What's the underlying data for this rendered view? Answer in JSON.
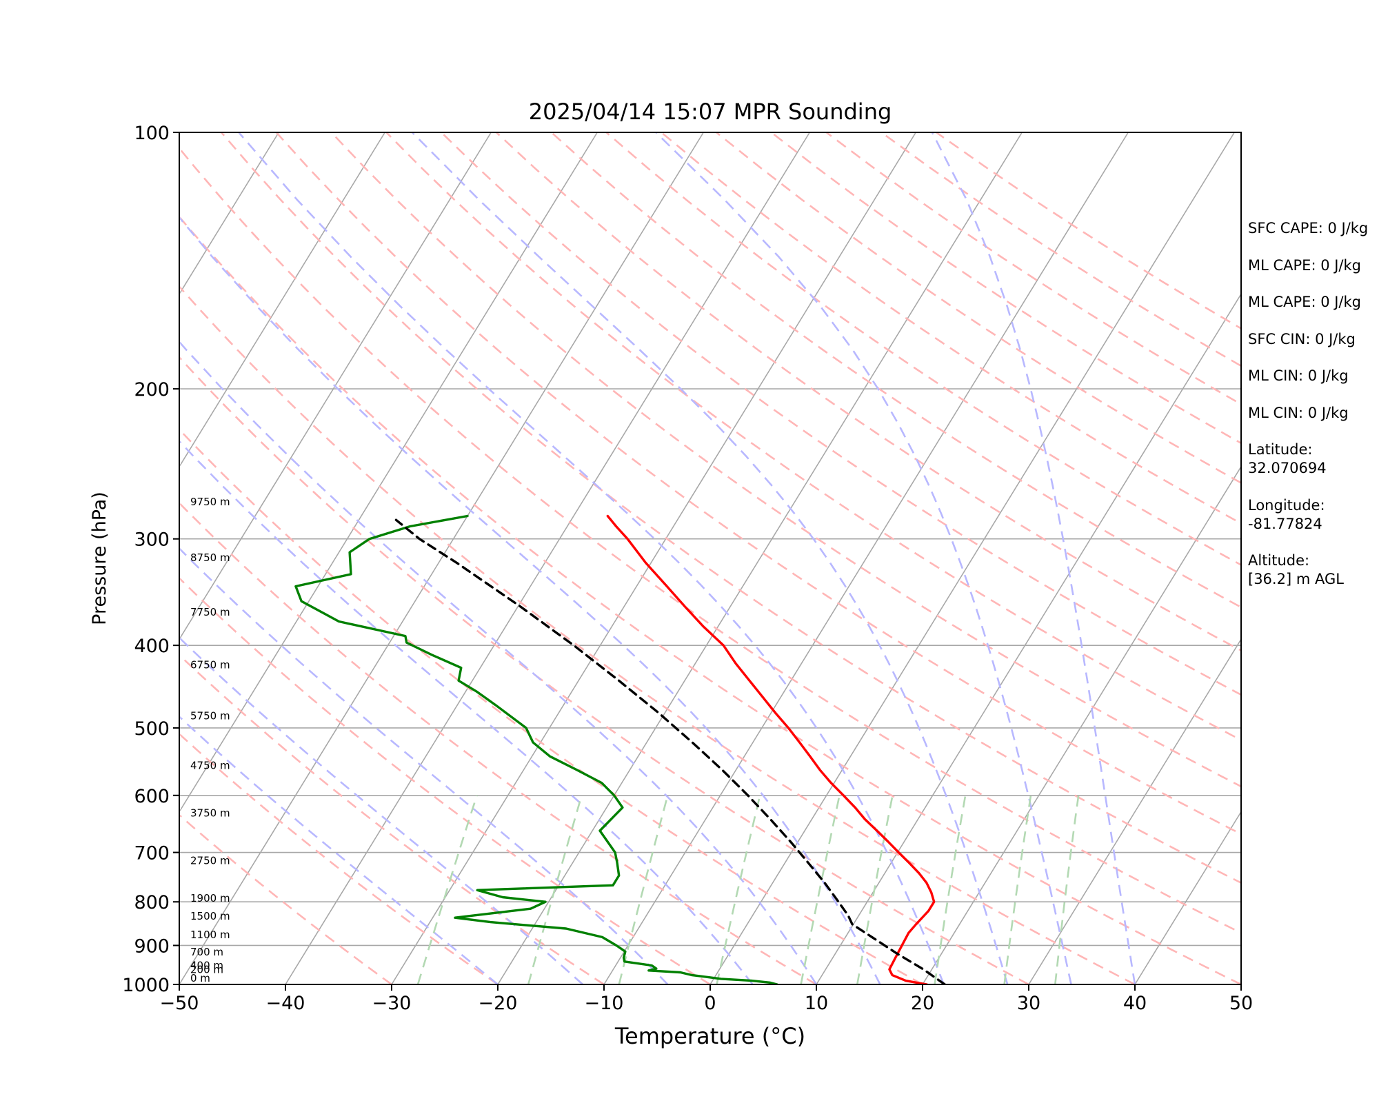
{
  "chart_data": {
    "type": "skew-t",
    "title": "2025/04/14 15:07 MPR Sounding",
    "xlabel": "Temperature (°C)",
    "ylabel": "Pressure (hPa)",
    "xlim": [
      -50,
      50
    ],
    "ylim": [
      1000,
      100
    ],
    "y_scale": "log",
    "x_ticks": [
      "−50",
      "−40",
      "−30",
      "−20",
      "−10",
      "0",
      "10",
      "20",
      "30",
      "40",
      "50"
    ],
    "y_ticks": [
      {
        "p": 1000,
        "label": "1000"
      },
      {
        "p": 900,
        "label": "900"
      },
      {
        "p": 800,
        "label": "800"
      },
      {
        "p": 700,
        "label": "700"
      },
      {
        "p": 600,
        "label": "600"
      },
      {
        "p": 500,
        "label": "500"
      },
      {
        "p": 400,
        "label": "400"
      },
      {
        "p": 300,
        "label": "300"
      },
      {
        "p": 200,
        "label": "200"
      },
      {
        "p": 100,
        "label": "100"
      }
    ],
    "height_labels": [
      {
        "p": 1000,
        "label": "0 m"
      },
      {
        "p": 977,
        "label": "200 m"
      },
      {
        "p": 966,
        "label": "400 m"
      },
      {
        "p": 932,
        "label": "700 m"
      },
      {
        "p": 889,
        "label": "1100 m"
      },
      {
        "p": 846,
        "label": "1500 m"
      },
      {
        "p": 806,
        "label": "1900 m"
      },
      {
        "p": 728,
        "label": "2750 m"
      },
      {
        "p": 640,
        "label": "3750 m"
      },
      {
        "p": 563,
        "label": "4750 m"
      },
      {
        "p": 492,
        "label": "5750 m"
      },
      {
        "p": 429,
        "label": "6750 m"
      },
      {
        "p": 372,
        "label": "7750 m"
      },
      {
        "p": 321,
        "label": "8750 m"
      },
      {
        "p": 276,
        "label": "9750 m"
      }
    ],
    "series": [
      {
        "key": "temperature",
        "color": "#ff0000",
        "points": [
          [
            1000,
            20.4
          ],
          [
            990,
            18.2
          ],
          [
            975,
            16.6
          ],
          [
            960,
            16.0
          ],
          [
            930,
            15.9
          ],
          [
            900,
            15.8
          ],
          [
            870,
            15.7
          ],
          [
            850,
            15.9
          ],
          [
            820,
            16.3
          ],
          [
            800,
            16.3
          ],
          [
            780,
            15.5
          ],
          [
            760,
            14.5
          ],
          [
            740,
            13.2
          ],
          [
            720,
            11.7
          ],
          [
            700,
            10.1
          ],
          [
            680,
            8.5
          ],
          [
            660,
            6.8
          ],
          [
            640,
            5.0
          ],
          [
            620,
            3.4
          ],
          [
            600,
            1.6
          ],
          [
            580,
            -0.3
          ],
          [
            560,
            -2.1
          ],
          [
            540,
            -3.8
          ],
          [
            520,
            -5.6
          ],
          [
            500,
            -7.5
          ],
          [
            480,
            -9.6
          ],
          [
            460,
            -11.7
          ],
          [
            440,
            -13.9
          ],
          [
            420,
            -16.2
          ],
          [
            400,
            -18.4
          ],
          [
            380,
            -21.4
          ],
          [
            360,
            -24.3
          ],
          [
            340,
            -27.3
          ],
          [
            320,
            -30.5
          ],
          [
            300,
            -33.6
          ],
          [
            290,
            -35.4
          ],
          [
            282,
            -36.8
          ]
        ]
      },
      {
        "key": "dewpoint",
        "color": "#008000",
        "points": [
          [
            1000,
            6.3
          ],
          [
            995,
            5.5
          ],
          [
            990,
            3.7
          ],
          [
            985,
            0.7
          ],
          [
            975,
            -2.3
          ],
          [
            968,
            -3.5
          ],
          [
            963,
            -6.6
          ],
          [
            958,
            -6.0
          ],
          [
            950,
            -6.6
          ],
          [
            940,
            -9.4
          ],
          [
            930,
            -9.7
          ],
          [
            915,
            -9.9
          ],
          [
            900,
            -11.1
          ],
          [
            880,
            -12.9
          ],
          [
            860,
            -16.8
          ],
          [
            845,
            -24.3
          ],
          [
            835,
            -27.9
          ],
          [
            815,
            -21.3
          ],
          [
            800,
            -20.3
          ],
          [
            790,
            -24.6
          ],
          [
            775,
            -27.4
          ],
          [
            765,
            -14.9
          ],
          [
            745,
            -14.9
          ],
          [
            720,
            -15.8
          ],
          [
            700,
            -16.6
          ],
          [
            660,
            -19.3
          ],
          [
            620,
            -18.5
          ],
          [
            600,
            -20.0
          ],
          [
            580,
            -21.9
          ],
          [
            560,
            -25.0
          ],
          [
            540,
            -28.3
          ],
          [
            520,
            -30.7
          ],
          [
            500,
            -32.2
          ],
          [
            470,
            -36.4
          ],
          [
            453,
            -39.0
          ],
          [
            440,
            -41.3
          ],
          [
            425,
            -41.8
          ],
          [
            410,
            -45.4
          ],
          [
            397,
            -48.4
          ],
          [
            390,
            -48.9
          ],
          [
            375,
            -56.0
          ],
          [
            355,
            -60.7
          ],
          [
            341,
            -62.1
          ],
          [
            330,
            -57.6
          ],
          [
            311,
            -59.0
          ],
          [
            300,
            -57.9
          ],
          [
            290,
            -54.8
          ],
          [
            282,
            -50.0
          ]
        ]
      },
      {
        "key": "parcel",
        "color": "#000000",
        "dashed": true,
        "points": [
          [
            1000,
            22.1
          ],
          [
            960,
            19.2
          ],
          [
            920,
            15.8
          ],
          [
            880,
            12.5
          ],
          [
            850,
            9.9
          ],
          [
            830,
            9.0
          ],
          [
            800,
            7.3
          ],
          [
            760,
            4.9
          ],
          [
            720,
            2.2
          ],
          [
            680,
            -0.7
          ],
          [
            640,
            -3.9
          ],
          [
            600,
            -7.4
          ],
          [
            560,
            -11.3
          ],
          [
            520,
            -15.7
          ],
          [
            480,
            -20.6
          ],
          [
            440,
            -26.2
          ],
          [
            400,
            -32.5
          ],
          [
            360,
            -39.8
          ],
          [
            320,
            -48.3
          ],
          [
            300,
            -53.2
          ],
          [
            285,
            -56.5
          ]
        ]
      }
    ],
    "indices": [
      "SFC CAPE: 0 J/kg",
      "ML CAPE: 0 J/kg",
      "ML CAPE: 0 J/kg",
      "SFC CIN: 0 J/kg",
      "ML CIN: 0 J/kg",
      "ML CIN: 0 J/kg"
    ],
    "location": {
      "latitude_label": "Latitude:",
      "latitude": "32.070694",
      "longitude_label": "Longitude:",
      "longitude": "-81.77824",
      "altitude_label": "Altitude:",
      "altitude": "[36.2] m AGL"
    },
    "style": {
      "isotherm_color": "#a8a8a8",
      "isobar_color": "#a8a8a8",
      "dry_adiabat_color": "#ffb6b6",
      "moist_adiabat_color": "#b8b8ff",
      "mixing_ratio_color": "#b3d9b3"
    }
  }
}
